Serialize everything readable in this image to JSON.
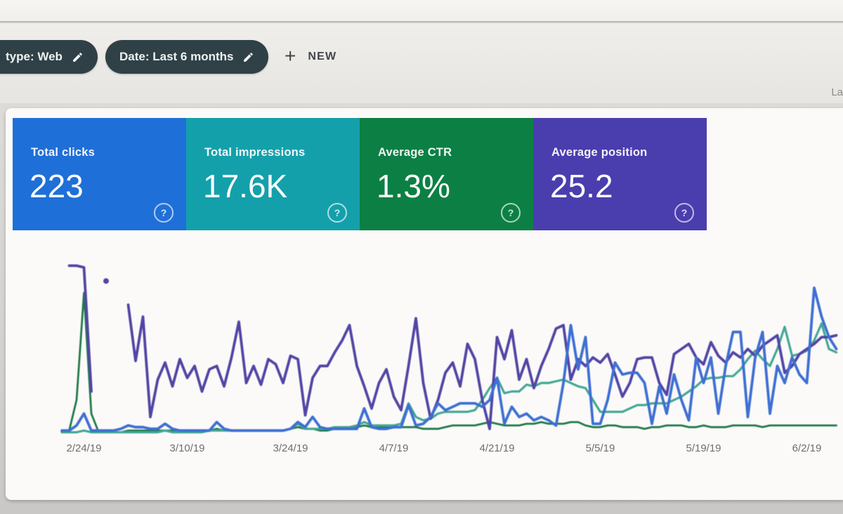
{
  "topbar": {
    "filters": [
      {
        "label": "type: Web"
      },
      {
        "label": "Date: Last 6 months"
      }
    ],
    "new_button": {
      "plus": "+",
      "label": "NEW"
    },
    "right_clipped_text": "La",
    "chip_color": "#2f4147"
  },
  "metric_cards": [
    {
      "label": "Total clicks",
      "value": "223",
      "color": "#1f6fd8",
      "help_icon": "?"
    },
    {
      "label": "Total impressions",
      "value": "17.6K",
      "color": "#14a0ab",
      "help_icon": "?"
    },
    {
      "label": "Average CTR",
      "value": "1.3%",
      "color": "#0c8044",
      "help_icon": "?"
    },
    {
      "label": "Average position",
      "value": "25.2",
      "color": "#4a3dae",
      "help_icon": "?"
    }
  ],
  "chart_data": {
    "type": "line",
    "title": "",
    "xlabel": "",
    "ylabel": "",
    "y_axis_visible": false,
    "grid": false,
    "legend_position": "none (series colors match metric cards)",
    "value_scale": "relative height 0-100 of plot area (no y-axis labels shown)",
    "x_tick_labels": [
      "2/24/19",
      "3/10/19",
      "3/24/19",
      "4/7/19",
      "4/21/19",
      "5/5/19",
      "5/19/19",
      "6/2/19"
    ],
    "x_tick_day_indices": [
      3,
      17,
      31,
      45,
      59,
      73,
      87,
      101
    ],
    "series": [
      {
        "name": "Average CTR",
        "color": "#20794a",
        "values": [
          1,
          2,
          20,
          83,
          12,
          1,
          1,
          1,
          1,
          2,
          2,
          2,
          2,
          2,
          2,
          2,
          2,
          2,
          2,
          2,
          2,
          3,
          2,
          2,
          2,
          2,
          2,
          2,
          2,
          2,
          2,
          3,
          4,
          3,
          3,
          2,
          2,
          3,
          3,
          3,
          4,
          5,
          4,
          4,
          4,
          4,
          4,
          4,
          4,
          3,
          3,
          3,
          4,
          5,
          5,
          5,
          5,
          6,
          7,
          6,
          5,
          5,
          5,
          6,
          6,
          7,
          6,
          6,
          6,
          7,
          7,
          5,
          4,
          4,
          5,
          5,
          4,
          4,
          4,
          3,
          4,
          4,
          5,
          5,
          5,
          4,
          4,
          5,
          4,
          4,
          4,
          5,
          5,
          5,
          5,
          4,
          5,
          5,
          5,
          5,
          5,
          5,
          5,
          5,
          5,
          5
        ]
      },
      {
        "name": "Total impressions",
        "color": "#43a795",
        "values": [
          1,
          1,
          1,
          2,
          1,
          1,
          1,
          1,
          1,
          1,
          1,
          1,
          1,
          1,
          2,
          1,
          1,
          1,
          1,
          1,
          2,
          2,
          2,
          2,
          2,
          2,
          2,
          2,
          2,
          2,
          2,
          3,
          6,
          3,
          3,
          3,
          3,
          4,
          4,
          4,
          5,
          7,
          5,
          5,
          5,
          5,
          6,
          18,
          10,
          8,
          9,
          12,
          13,
          13,
          13,
          13,
          14,
          20,
          27,
          33,
          24,
          25,
          25,
          29,
          28,
          30,
          30,
          31,
          32,
          30,
          28,
          27,
          20,
          13,
          13,
          13,
          13,
          15,
          17,
          17,
          18,
          18,
          18,
          20,
          22,
          25,
          28,
          32,
          33,
          33,
          34,
          34,
          38,
          44,
          49,
          44,
          40,
          50,
          63,
          46,
          47,
          49,
          55,
          65,
          50,
          48
        ]
      },
      {
        "name": "Average position",
        "color": "#5145a5",
        "values": [
          null,
          99,
          99,
          98,
          25,
          null,
          90,
          null,
          null,
          76,
          43,
          69,
          10,
          32,
          42,
          28,
          44,
          33,
          40,
          25,
          38,
          40,
          28,
          45,
          66,
          30,
          40,
          29,
          44,
          41,
          30,
          46,
          44,
          11,
          33,
          40,
          40,
          48,
          55,
          64,
          40,
          28,
          15,
          30,
          38,
          22,
          14,
          40,
          68,
          30,
          9,
          20,
          36,
          42,
          28,
          53,
          44,
          20,
          3,
          57,
          44,
          61,
          32,
          44,
          27,
          40,
          50,
          62,
          64,
          32,
          44,
          40,
          45,
          42,
          47,
          35,
          22,
          30,
          44,
          45,
          45,
          30,
          23,
          47,
          50,
          53,
          45,
          41,
          54,
          46,
          42,
          48,
          45,
          50,
          46,
          52,
          55,
          58,
          36,
          40,
          47,
          50,
          53,
          57,
          57,
          58
        ]
      },
      {
        "name": "Total clicks",
        "color": "#3e6fd3",
        "values": [
          2,
          2,
          5,
          12,
          2,
          2,
          2,
          2,
          3,
          5,
          4,
          4,
          3,
          3,
          6,
          3,
          2,
          2,
          2,
          2,
          2,
          7,
          3,
          2,
          2,
          2,
          2,
          2,
          2,
          2,
          2,
          3,
          7,
          4,
          10,
          4,
          3,
          3,
          3,
          3,
          3,
          15,
          4,
          3,
          3,
          4,
          4,
          17,
          5,
          6,
          10,
          18,
          14,
          16,
          18,
          18,
          18,
          16,
          20,
          33,
          6,
          16,
          10,
          12,
          8,
          10,
          8,
          5,
          30,
          64,
          38,
          57,
          6,
          6,
          20,
          42,
          35,
          36,
          36,
          30,
          6,
          28,
          12,
          35,
          20,
          8,
          45,
          30,
          45,
          12,
          40,
          60,
          60,
          10,
          45,
          60,
          12,
          40,
          30,
          45,
          35,
          30,
          86,
          69,
          57,
          50
        ]
      }
    ]
  }
}
